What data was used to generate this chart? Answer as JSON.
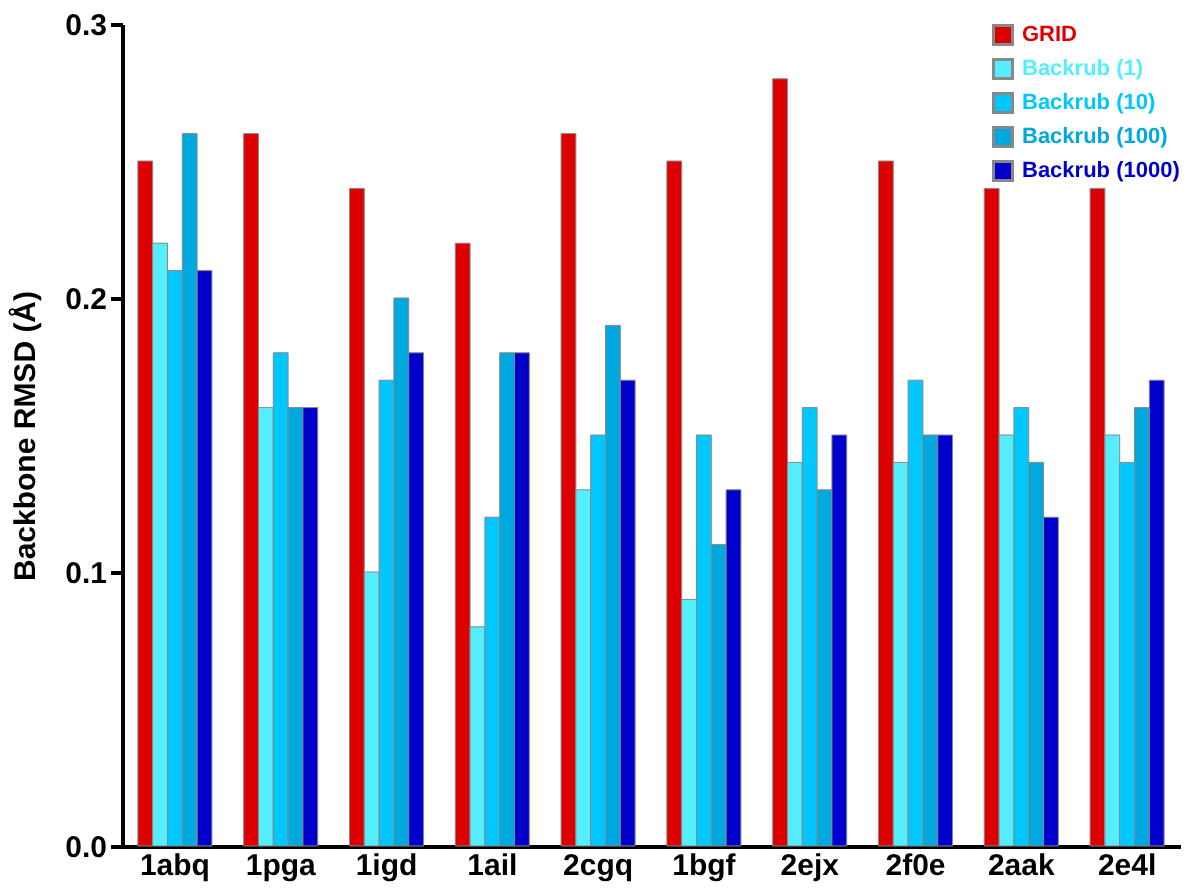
{
  "chart_data": {
    "type": "bar",
    "ylabel": "Backbone RMSD (Å)",
    "categories": [
      "1abq",
      "1pga",
      "1igd",
      "1ail",
      "2cgq",
      "1bgf",
      "2ejx",
      "2f0e",
      "2aak",
      "2e4l"
    ],
    "series": [
      {
        "name": "GRID",
        "color": "#dd0000",
        "values": [
          0.25,
          0.26,
          0.24,
          0.22,
          0.26,
          0.25,
          0.28,
          0.25,
          0.24,
          0.24
        ]
      },
      {
        "name": "Backrub (1)",
        "color": "#55eeff",
        "values": [
          0.22,
          0.16,
          0.1,
          0.08,
          0.13,
          0.09,
          0.14,
          0.14,
          0.15,
          0.15
        ]
      },
      {
        "name": "Backrub (10)",
        "color": "#00c8ff",
        "values": [
          0.21,
          0.18,
          0.17,
          0.12,
          0.15,
          0.15,
          0.16,
          0.17,
          0.16,
          0.14
        ]
      },
      {
        "name": "Backrub (100)",
        "color": "#00a8e0",
        "values": [
          0.26,
          0.16,
          0.2,
          0.18,
          0.19,
          0.11,
          0.13,
          0.15,
          0.14,
          0.16
        ]
      },
      {
        "name": "Backrub (1000)",
        "color": "#0000cc",
        "values": [
          0.21,
          0.16,
          0.18,
          0.18,
          0.17,
          0.13,
          0.15,
          0.15,
          0.12,
          0.17
        ]
      }
    ],
    "ylim": [
      0,
      0.3
    ],
    "yticks": [
      {
        "value": 0,
        "label": "0.0"
      },
      0.1,
      0.2,
      0.3
    ],
    "grid": false,
    "legend": "top right"
  }
}
